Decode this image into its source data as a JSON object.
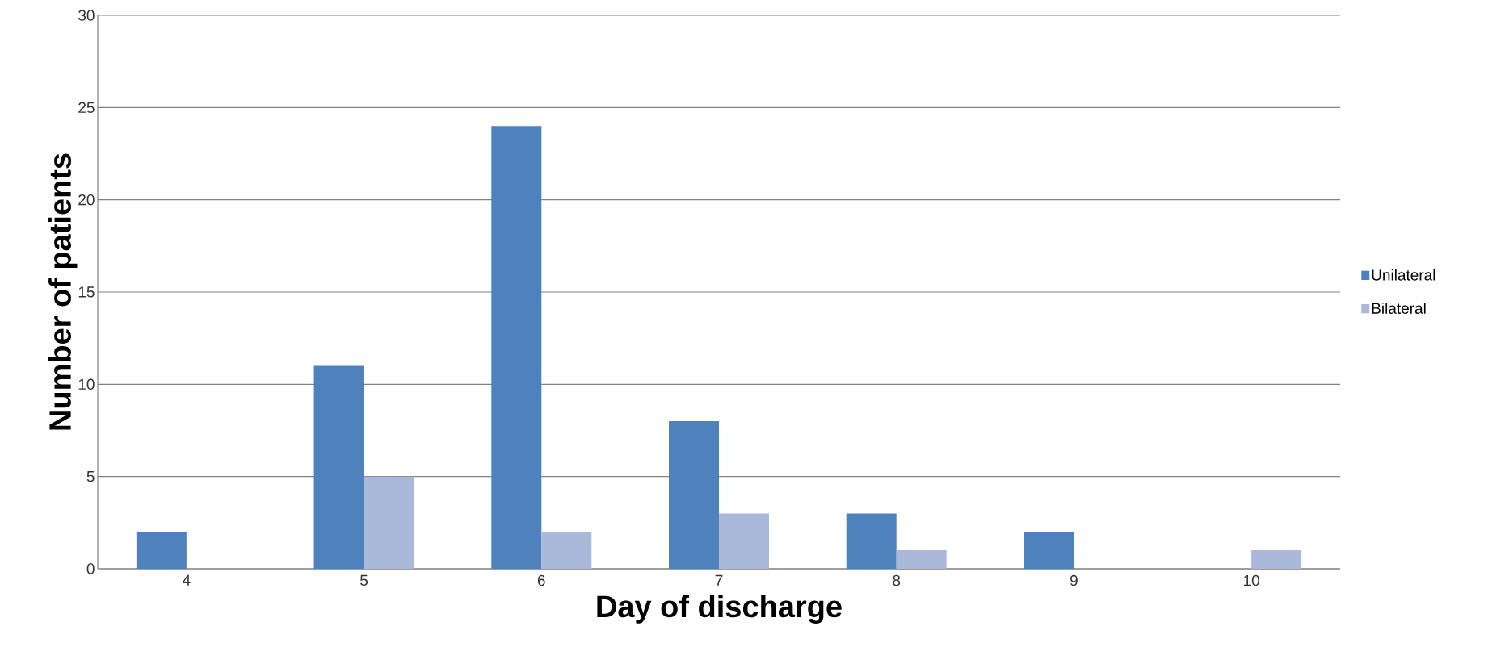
{
  "chart_data": {
    "type": "bar",
    "xlabel": "Day of discharge",
    "ylabel": "Number of patients",
    "categories": [
      "4",
      "5",
      "6",
      "7",
      "8",
      "9",
      "10"
    ],
    "series": [
      {
        "name": "Unilateral",
        "color": "#4f81bd",
        "values": [
          2,
          11,
          24,
          8,
          3,
          2,
          0
        ]
      },
      {
        "name": "Bilateral",
        "color": "#aab9d9",
        "values": [
          0,
          5,
          2,
          3,
          1,
          0,
          1
        ]
      }
    ],
    "ylim": [
      0,
      30
    ],
    "yticks": [
      0,
      5,
      10,
      15,
      20,
      25,
      30
    ],
    "grid": "y",
    "legend": "right"
  }
}
